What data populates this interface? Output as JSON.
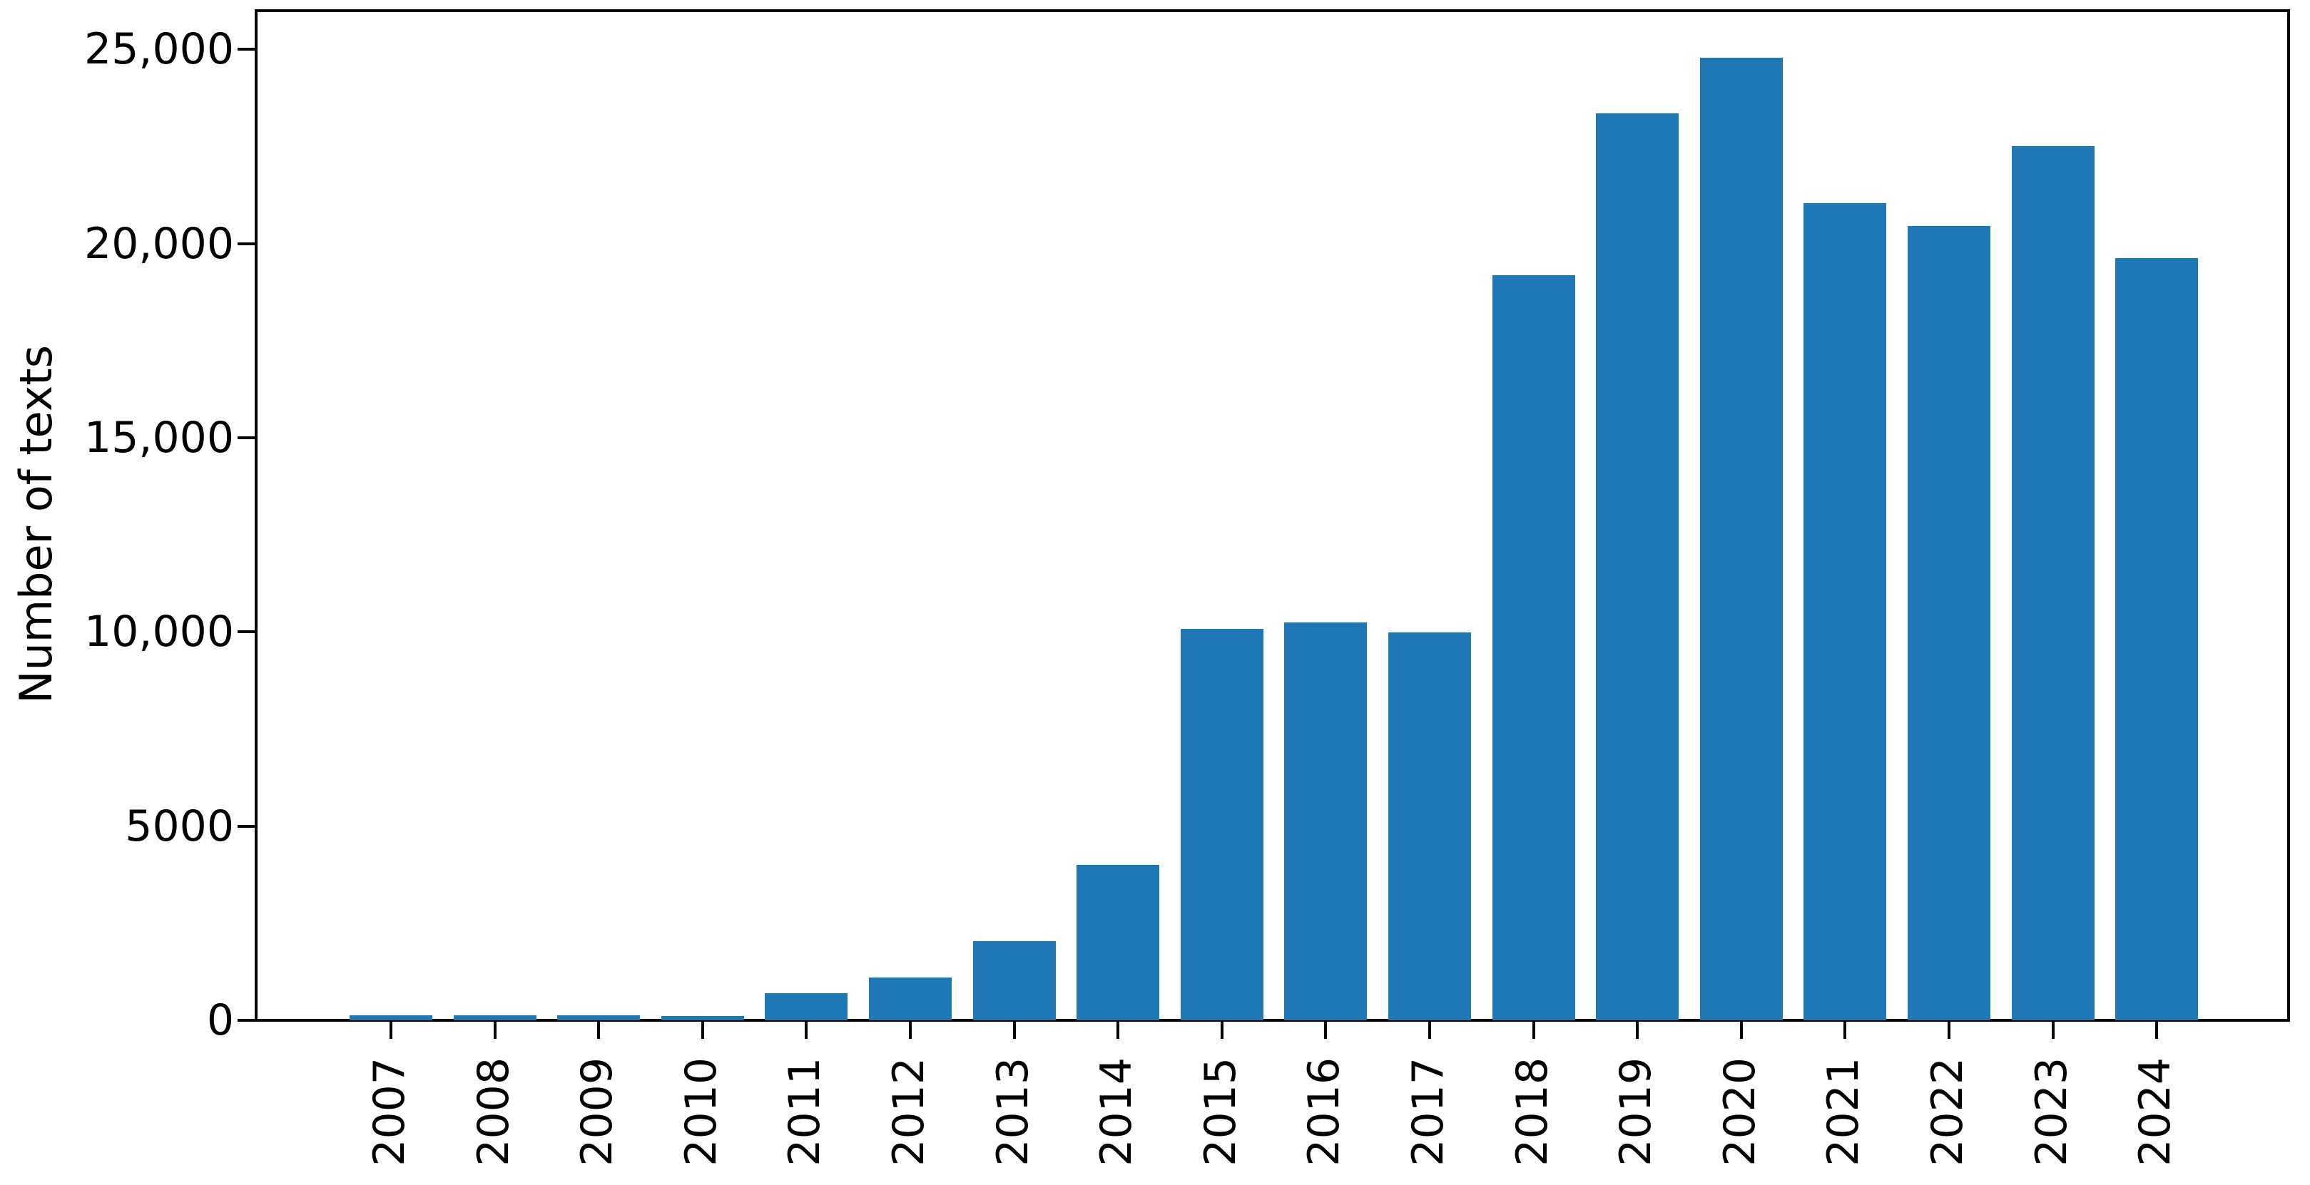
{
  "figure": {
    "background_color": "#ffffff",
    "bar_color": "#1f77b4",
    "axis_color": "#000000",
    "text_color": "#000000"
  },
  "chart_data": {
    "type": "bar",
    "title": "",
    "xlabel": "",
    "ylabel": "Number of texts",
    "categories": [
      "2007",
      "2008",
      "2009",
      "2010",
      "2011",
      "2012",
      "2013",
      "2014",
      "2015",
      "2016",
      "2017",
      "2018",
      "2019",
      "2020",
      "2021",
      "2022",
      "2023",
      "2024"
    ],
    "values": [
      130,
      130,
      130,
      110,
      700,
      1100,
      2040,
      4000,
      10080,
      10250,
      9980,
      19180,
      23350,
      24780,
      21050,
      20460,
      22520,
      19620
    ],
    "ylim": [
      0,
      26000
    ],
    "yticks": [
      {
        "value": 0,
        "label": "0"
      },
      {
        "value": 5000,
        "label": "5000"
      },
      {
        "value": 10000,
        "label": "10,000"
      },
      {
        "value": 15000,
        "label": "15,000"
      },
      {
        "value": 20000,
        "label": "20,000"
      },
      {
        "value": 25000,
        "label": "25,000"
      }
    ],
    "grid": false,
    "legend_position": "none",
    "x_tick_label_rotation_deg": 90
  }
}
